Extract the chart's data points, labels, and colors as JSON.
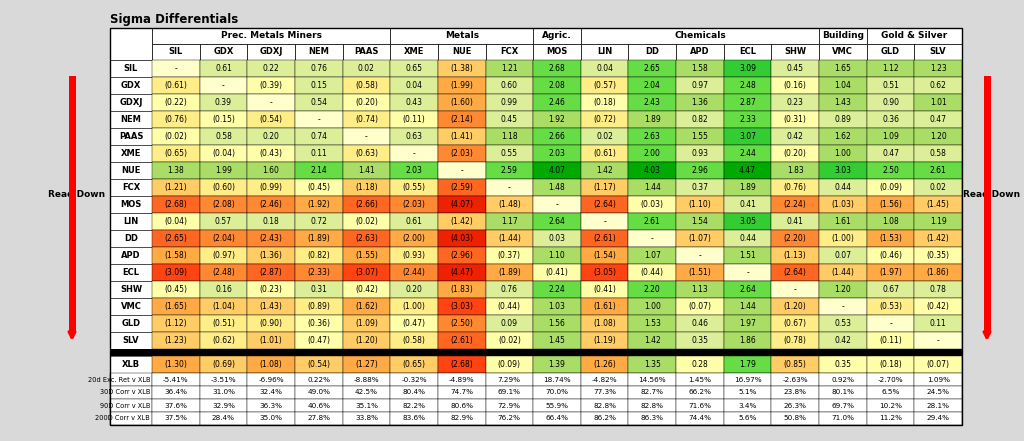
{
  "title": "Sigma Differentials",
  "col_groups": [
    {
      "label": "Prec. Metals Miners",
      "span": 5
    },
    {
      "label": "Metals",
      "span": 3
    },
    {
      "label": "Agric.",
      "span": 1
    },
    {
      "label": "Chemicals",
      "span": 5
    },
    {
      "label": "Building",
      "span": 1
    },
    {
      "label": "Gold & Silver",
      "span": 2
    }
  ],
  "row_labels": [
    "SIL",
    "GDX",
    "GDXJ",
    "NEM",
    "PAAS",
    "XME",
    "NUE",
    "FCX",
    "MOS",
    "LIN",
    "DD",
    "APD",
    "ECL",
    "SHW",
    "VMC",
    "GLD",
    "SLV"
  ],
  "col_labels": [
    "SIL",
    "GDX",
    "GDXJ",
    "NEM",
    "PAAS",
    "XME",
    "NUE",
    "FCX",
    "MOS",
    "LIN",
    "DD",
    "APD",
    "ECL",
    "SHW",
    "VMC",
    "GLD",
    "SLV"
  ],
  "table_data": [
    [
      null,
      0.61,
      0.22,
      0.76,
      0.02,
      0.65,
      -1.38,
      1.21,
      2.68,
      0.04,
      2.65,
      1.58,
      3.09,
      0.45,
      1.65,
      1.12,
      1.23
    ],
    [
      -0.61,
      null,
      -0.39,
      0.15,
      -0.58,
      0.04,
      -1.99,
      0.6,
      2.08,
      -0.57,
      2.04,
      0.97,
      2.48,
      -0.16,
      1.04,
      0.51,
      0.62
    ],
    [
      -0.22,
      0.39,
      null,
      0.54,
      -0.2,
      0.43,
      -1.6,
      0.99,
      2.46,
      -0.18,
      2.43,
      1.36,
      2.87,
      0.23,
      1.43,
      0.9,
      1.01
    ],
    [
      -0.76,
      -0.15,
      -0.54,
      null,
      -0.74,
      -0.11,
      -2.14,
      0.45,
      1.92,
      -0.72,
      1.89,
      0.82,
      2.33,
      -0.31,
      0.89,
      0.36,
      0.47
    ],
    [
      -0.02,
      0.58,
      0.2,
      0.74,
      null,
      0.63,
      -1.41,
      1.18,
      2.66,
      0.02,
      2.63,
      1.55,
      3.07,
      0.42,
      1.62,
      1.09,
      1.2
    ],
    [
      -0.65,
      -0.04,
      -0.43,
      0.11,
      -0.63,
      null,
      -2.03,
      0.55,
      2.03,
      -0.61,
      2.0,
      0.93,
      2.44,
      -0.2,
      1.0,
      0.47,
      0.58
    ],
    [
      1.38,
      1.99,
      1.6,
      2.14,
      1.41,
      2.03,
      null,
      2.59,
      4.07,
      1.42,
      4.03,
      2.96,
      4.47,
      1.83,
      3.03,
      2.5,
      2.61
    ],
    [
      -1.21,
      -0.6,
      -0.99,
      -0.45,
      -1.18,
      -0.55,
      -2.59,
      null,
      1.48,
      -1.17,
      1.44,
      0.37,
      1.89,
      -0.76,
      0.44,
      -0.09,
      0.02
    ],
    [
      -2.68,
      -2.08,
      -2.46,
      -1.92,
      -2.66,
      -2.03,
      -4.07,
      -1.48,
      null,
      -2.64,
      -0.03,
      -1.1,
      0.41,
      -2.24,
      -1.03,
      -1.56,
      -1.45
    ],
    [
      -0.04,
      0.57,
      0.18,
      0.72,
      -0.02,
      0.61,
      -1.42,
      1.17,
      2.64,
      null,
      2.61,
      1.54,
      3.05,
      0.41,
      1.61,
      1.08,
      1.19
    ],
    [
      -2.65,
      -2.04,
      -2.43,
      -1.89,
      -2.63,
      -2.0,
      -4.03,
      -1.44,
      0.03,
      -2.61,
      null,
      -1.07,
      0.44,
      -2.2,
      -1.0,
      -1.53,
      -1.42
    ],
    [
      -1.58,
      -0.97,
      -1.36,
      -0.82,
      -1.55,
      -0.93,
      -2.96,
      -0.37,
      1.1,
      -1.54,
      1.07,
      null,
      1.51,
      -1.13,
      0.07,
      -0.46,
      -0.35
    ],
    [
      -3.09,
      -2.48,
      -2.87,
      -2.33,
      -3.07,
      -2.44,
      -4.47,
      -1.89,
      -0.41,
      -3.05,
      -0.44,
      -1.51,
      null,
      -2.64,
      -1.44,
      -1.97,
      -1.86
    ],
    [
      -0.45,
      0.16,
      -0.23,
      0.31,
      -0.42,
      0.2,
      -1.83,
      0.76,
      2.24,
      -0.41,
      2.2,
      1.13,
      2.64,
      null,
      1.2,
      0.67,
      0.78
    ],
    [
      -1.65,
      -1.04,
      -1.43,
      -0.89,
      -1.62,
      -1.0,
      -3.03,
      -0.44,
      1.03,
      -1.61,
      1.0,
      -0.07,
      1.44,
      -1.2,
      null,
      -0.53,
      -0.42
    ],
    [
      -1.12,
      -0.51,
      -0.9,
      -0.36,
      -1.09,
      -0.47,
      -2.5,
      0.09,
      1.56,
      -1.08,
      1.53,
      0.46,
      1.97,
      -0.67,
      0.53,
      null,
      0.11
    ],
    [
      -1.23,
      -0.62,
      -1.01,
      -0.47,
      -1.2,
      -0.58,
      -2.61,
      -0.02,
      1.45,
      -1.19,
      1.42,
      0.35,
      1.86,
      -0.78,
      0.42,
      -0.11,
      null
    ]
  ],
  "xlb_row": [
    -1.3,
    -0.69,
    -1.08,
    -0.54,
    -1.27,
    -0.65,
    -2.68,
    -0.09,
    1.39,
    -1.26,
    1.35,
    0.28,
    1.79,
    -0.85,
    0.35,
    -0.18,
    -0.07
  ],
  "exc_ret": [
    "-5.41%",
    "-3.51%",
    "-6.96%",
    "0.22%",
    "-8.88%",
    "-0.32%",
    "-4.89%",
    "7.29%",
    "18.74%",
    "-4.82%",
    "14.56%",
    "1.45%",
    "16.97%",
    "-2.63%",
    "0.92%",
    "-2.70%",
    "1.09%"
  ],
  "corr_30d": [
    "36.4%",
    "31.0%",
    "32.4%",
    "49.0%",
    "42.5%",
    "80.4%",
    "74.7%",
    "69.1%",
    "70.0%",
    "77.3%",
    "82.7%",
    "66.2%",
    "5.1%",
    "23.8%",
    "80.1%",
    "6.5%",
    "24.5%"
  ],
  "corr_90d": [
    "37.6%",
    "32.9%",
    "36.3%",
    "40.6%",
    "35.1%",
    "82.2%",
    "80.6%",
    "72.9%",
    "55.9%",
    "82.8%",
    "82.8%",
    "71.6%",
    "3.4%",
    "26.3%",
    "69.7%",
    "10.2%",
    "28.1%"
  ],
  "corr_200d": [
    "37.5%",
    "28.4%",
    "35.0%",
    "27.8%",
    "33.8%",
    "83.6%",
    "82.9%",
    "76.2%",
    "66.4%",
    "86.2%",
    "86.3%",
    "74.4%",
    "5.6%",
    "50.8%",
    "71.0%",
    "11.2%",
    "29.4%"
  ],
  "stats_labels": [
    "20d Exc. Ret v XLB",
    "30D Corr v XLB",
    "90D Corr v XLB",
    "200D Corr v XLB"
  ],
  "bg_color": "#d9d9d9",
  "white": "#ffffff",
  "black": "#000000",
  "red_arrow": "#ff0000"
}
